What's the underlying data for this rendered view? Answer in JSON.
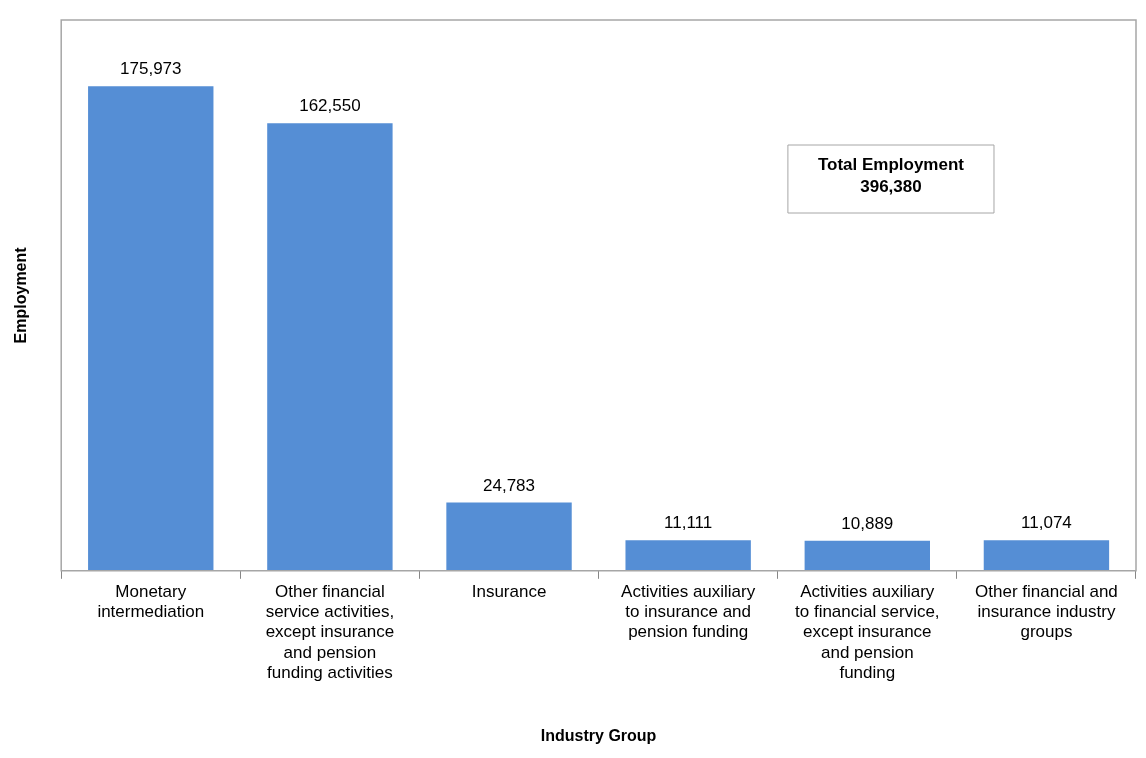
{
  "chart_data": {
    "type": "bar",
    "xlabel": "Industry Group",
    "ylabel": "Employment",
    "categories": [
      "Monetary intermediation",
      "Other financial service activities, except insurance and pension funding activities",
      "Insurance",
      "Activities auxiliary to insurance and pension funding",
      "Activities auxiliary to financial service, except insurance and pension funding",
      "Other financial and insurance industry groups"
    ],
    "values": [
      175973,
      162550,
      24783,
      11111,
      10889,
      11074
    ],
    "value_labels": [
      "175,973",
      "162,550",
      "24,783",
      "11,111",
      "10,889",
      "11,074"
    ],
    "color": "#558ed5",
    "grid": false,
    "legend": false,
    "tick_labels": "x",
    "annotations": [
      "Total Employment\n396,380"
    ]
  }
}
